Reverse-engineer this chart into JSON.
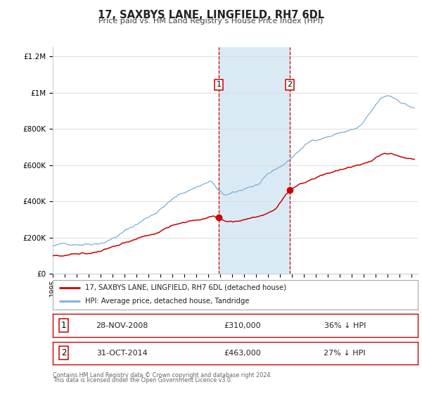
{
  "title": "17, SAXBYS LANE, LINGFIELD, RH7 6DL",
  "subtitle": "Price paid vs. HM Land Registry’s House Price Index (HPI)",
  "legend_label_red": "17, SAXBYS LANE, LINGFIELD, RH7 6DL (detached house)",
  "legend_label_blue": "HPI: Average price, detached house, Tandridge",
  "transaction1_label": "1",
  "transaction1_date": "28-NOV-2008",
  "transaction1_price": 310000,
  "transaction1_pct": "36% ↓ HPI",
  "transaction2_label": "2",
  "transaction2_date": "31-OCT-2014",
  "transaction2_price": 463000,
  "transaction2_pct": "27% ↓ HPI",
  "footer1": "Contains HM Land Registry data © Crown copyright and database right 2024.",
  "footer2": "This data is licensed under the Open Government Licence v3.0.",
  "red_color": "#cc0000",
  "blue_color": "#7bafd4",
  "shade_color": "#daeaf5",
  "vline_color": "#cc0000",
  "ylim_max": 1250000,
  "ylim_min": 0,
  "xmin": 1995,
  "xmax": 2025.5
}
